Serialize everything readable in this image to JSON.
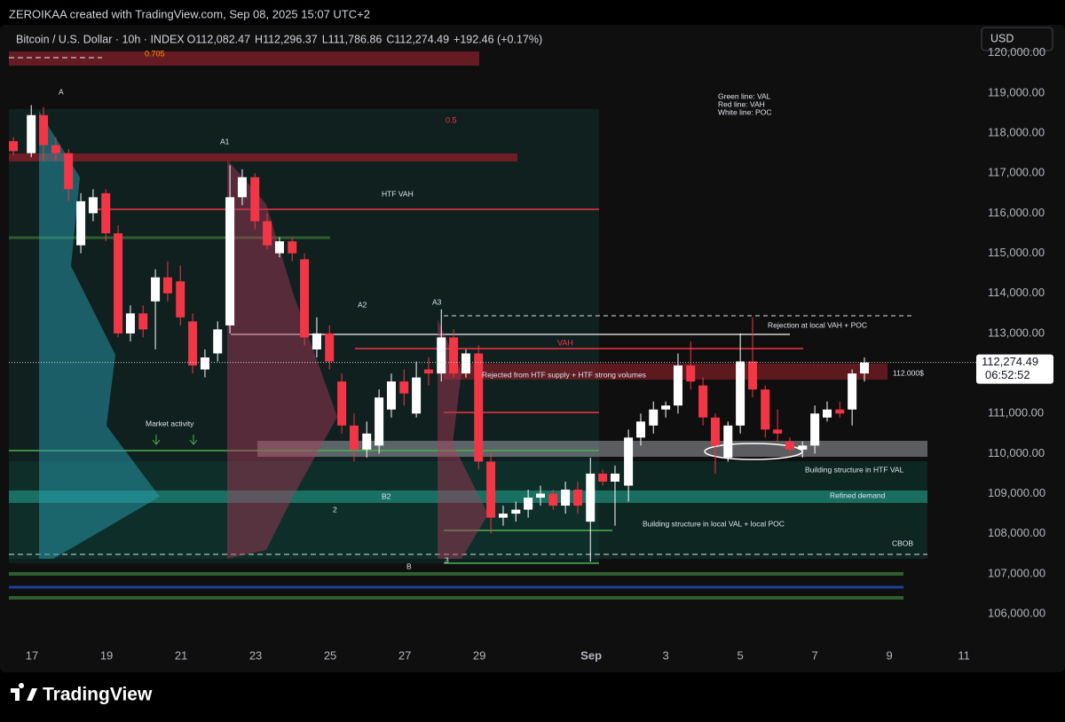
{
  "header": "ZEROIKAA created with TradingView.com, Sep 08, 2025 15:07 UTC+2",
  "brand": "TradingView",
  "chart_data": {
    "type": "candlestick",
    "symbol": "Bitcoin / U.S. Dollar · 10h · INDEX",
    "ohlc": [
      {
        "key": "O",
        "value": 112082.47,
        "label": "112,082.47"
      },
      {
        "key": "H",
        "value": 112296.37,
        "label": "112,296.37"
      },
      {
        "key": "L",
        "value": 111786.86,
        "label": "111,786.86"
      },
      {
        "key": "C",
        "value": 112274.49,
        "label": "112,274.49"
      }
    ],
    "change": "+192.46 (+0.17%)",
    "currency": "USD",
    "last_price_label": "112,274.49",
    "countdown": "06:52:52",
    "up_color": "#ffffff",
    "down_color": "#f23645",
    "grid": false,
    "x": [
      16.5,
      16.98,
      17.31,
      17.64,
      17.98,
      18.31,
      18.64,
      18.98,
      19.31,
      19.64,
      19.98,
      20.31,
      20.64,
      20.98,
      21.31,
      21.64,
      21.98,
      22.31,
      22.64,
      22.98,
      23.31,
      23.64,
      23.98,
      24.31,
      24.64,
      24.98,
      25.31,
      25.64,
      25.98,
      26.31,
      26.64,
      26.98,
      27.31,
      27.64,
      27.98,
      28.31,
      28.64,
      28.98,
      29.31,
      29.64,
      29.98,
      30.31,
      30.64,
      30.98,
      31.31,
      31.64,
      31.98,
      32.31,
      32.64,
      33.0,
      33.33,
      33.67,
      34.0,
      34.33,
      34.67,
      35.0,
      35.33,
      35.67,
      36.0,
      36.33,
      36.67,
      37.0,
      37.33,
      37.67,
      38.0,
      38.33,
      38.67,
      39.0,
      39.33
    ],
    "open": [
      117800,
      117500,
      118450,
      117700,
      117500,
      115200,
      116000,
      116500,
      115500,
      113000,
      113500,
      113800,
      114400,
      114300,
      113300,
      112100,
      112500,
      113200,
      116400,
      116900,
      115800,
      115000,
      115300,
      114850,
      112600,
      113000,
      111800,
      110700,
      110100,
      110200,
      111100,
      111800,
      111000,
      112100,
      112000,
      112900,
      112000,
      112500,
      109800,
      108400,
      108500,
      108600,
      108900,
      109000,
      108700,
      109100,
      108300,
      109500,
      109300,
      109200,
      110400,
      110700,
      111100,
      111200,
      112200,
      111700,
      110900,
      109900,
      110700,
      112300,
      111600,
      110600,
      110300,
      110100,
      110200,
      110900,
      111100,
      111100,
      112000
    ],
    "high": [
      117900,
      118700,
      118650,
      117900,
      117600,
      116500,
      116600,
      116600,
      115700,
      113700,
      113700,
      114600,
      114800,
      114700,
      113500,
      112600,
      113300,
      117200,
      117100,
      117000,
      116000,
      115400,
      115400,
      115000,
      113400,
      113200,
      112000,
      111000,
      110800,
      111600,
      112000,
      112100,
      112300,
      112400,
      113600,
      113100,
      112600,
      112700,
      110000,
      108700,
      108800,
      109100,
      109200,
      109100,
      109300,
      109300,
      109900,
      109600,
      109700,
      110600,
      111000,
      111300,
      111300,
      112500,
      112800,
      111900,
      111000,
      110800,
      113000,
      113400,
      111700,
      111100,
      110400,
      110300,
      111200,
      111300,
      111300,
      112100,
      112400
    ],
    "low": [
      117450,
      117400,
      117300,
      117300,
      116300,
      115000,
      115800,
      115300,
      112900,
      112800,
      112900,
      112600,
      113800,
      113200,
      112000,
      111900,
      112300,
      113000,
      116200,
      115600,
      115100,
      114900,
      114800,
      112700,
      112400,
      112100,
      110500,
      109800,
      109900,
      110000,
      110900,
      111200,
      110900,
      111700,
      111800,
      111900,
      111900,
      109600,
      108000,
      108200,
      108300,
      108400,
      108700,
      108600,
      108500,
      108500,
      107300,
      109200,
      108200,
      108800,
      110200,
      110500,
      110900,
      111000,
      111600,
      110700,
      109500,
      109800,
      110500,
      111400,
      110400,
      110300,
      110000,
      109900,
      110000,
      110800,
      110900,
      110700,
      111800
    ],
    "close": [
      117550,
      118450,
      117700,
      117500,
      116600,
      116300,
      116400,
      115500,
      113000,
      113500,
      113100,
      114400,
      114000,
      113400,
      112200,
      112400,
      113100,
      116400,
      116900,
      115800,
      115200,
      115300,
      115000,
      112900,
      113000,
      112300,
      110700,
      110100,
      110500,
      111400,
      111800,
      111500,
      111900,
      112000,
      112900,
      112000,
      112500,
      109800,
      108400,
      108500,
      108600,
      108900,
      109000,
      108700,
      109100,
      108700,
      109500,
      109300,
      109500,
      110400,
      110800,
      111100,
      111200,
      112200,
      111800,
      110900,
      110200,
      110700,
      112300,
      111600,
      110600,
      110500,
      110100,
      110200,
      111000,
      111100,
      111000,
      112000,
      112274.49
    ],
    "xlim": [
      16.38,
      42.33
    ],
    "xticks": [
      17,
      19,
      21,
      23,
      25,
      27,
      29,
      {
        "value": 32,
        "label": "Sep"
      },
      {
        "value": 34,
        "label": "3"
      },
      {
        "value": 36,
        "label": "5"
      },
      {
        "value": 38,
        "label": "7"
      },
      {
        "value": 40,
        "label": "9"
      },
      {
        "value": 42,
        "label": "11"
      }
    ],
    "ylim": [
      105380,
      120660
    ],
    "yticks": [
      {
        "value": 106000,
        "label": "106,000.00"
      },
      {
        "value": 107000,
        "label": "107,000.00"
      },
      {
        "value": 108000,
        "label": "108,000.00"
      },
      {
        "value": 109000,
        "label": "109,000.00"
      },
      {
        "value": 110000,
        "label": "110,000.00"
      },
      {
        "value": 111000,
        "label": "111,000.00"
      },
      {
        "value": 112000,
        "label": "112,000.00"
      },
      {
        "value": 113000,
        "label": "113,000.00"
      },
      {
        "value": 114000,
        "label": "114,000.00"
      },
      {
        "value": 115000,
        "label": "115,000.00"
      },
      {
        "value": 116000,
        "label": "116,000.00"
      },
      {
        "value": 117000,
        "label": "117,000.00"
      },
      {
        "value": 118000,
        "label": "118,000.00"
      },
      {
        "value": 119000,
        "label": "119,000.00"
      },
      {
        "value": 120000,
        "label": "120,000.00"
      }
    ],
    "annotations": [
      "0.705",
      "A",
      "A1",
      "0.5",
      "HTF VAH",
      "Green line: VAL",
      "Red line: VAH",
      "White line: POC",
      "A2",
      "A3",
      "VAH",
      "Rejection at local VAH + POC",
      "Rejected from HTF supply + HTF strong volumes",
      "112.000$",
      "Market activity",
      "Building structure in HTF VAL",
      "Refined demand",
      "Building structure in local VAL + local POC",
      "CBOB",
      "B2",
      "B",
      "2",
      "3"
    ]
  }
}
